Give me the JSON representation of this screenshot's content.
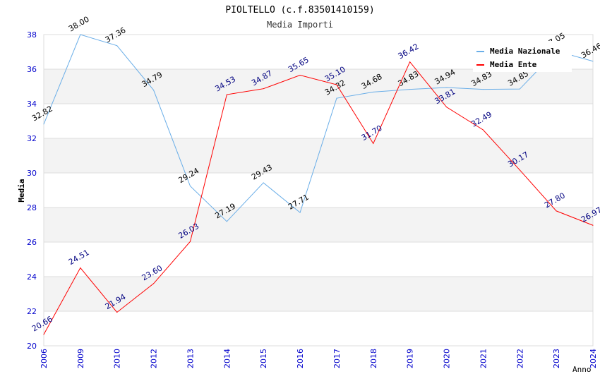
{
  "chart_data": {
    "type": "line",
    "title": "PIOLTELLO (c.f.83501410159)",
    "subtitle": "Media Importi",
    "xlabel": "Anno",
    "ylabel": "Media",
    "ylim": [
      20,
      38
    ],
    "yticks": [
      "20",
      "22",
      "24",
      "26",
      "28",
      "30",
      "32",
      "34",
      "36",
      "38"
    ],
    "categories": [
      "2006",
      "2009",
      "2010",
      "2012",
      "2013",
      "2014",
      "2015",
      "2016",
      "2017",
      "2018",
      "2019",
      "2020",
      "2021",
      "2022",
      "2023",
      "2024"
    ],
    "legend_position": "top-right",
    "series": [
      {
        "name": "Media Nazionale",
        "color": "#6aaee8",
        "label_color": "#000000",
        "values": [
          32.82,
          38.0,
          37.36,
          34.79,
          29.24,
          27.19,
          29.43,
          27.71,
          34.32,
          34.68,
          34.83,
          34.94,
          34.83,
          34.85,
          37.05,
          36.46
        ],
        "labels": [
          "32.82",
          "38.00",
          "37.36",
          "34.79",
          "29.24",
          "27.19",
          "29.43",
          "27.71",
          "34.32",
          "34.68",
          "34.83",
          "34.94",
          "34.83",
          "34.85",
          "37.05",
          "36.46"
        ]
      },
      {
        "name": "Media Ente",
        "color": "#ff0000",
        "label_color": "#000080",
        "values": [
          20.66,
          24.51,
          21.94,
          23.6,
          26.03,
          34.53,
          34.87,
          35.65,
          35.1,
          31.7,
          36.42,
          33.81,
          32.49,
          30.17,
          27.8,
          26.97
        ],
        "labels": [
          "20.66",
          "24.51",
          "21.94",
          "23.60",
          "26.03",
          "34.53",
          "34.87",
          "35.65",
          "35.10",
          "31.70",
          "36.42",
          "33.81",
          "32.49",
          "30.17",
          "27.80",
          "26.97"
        ]
      }
    ]
  }
}
